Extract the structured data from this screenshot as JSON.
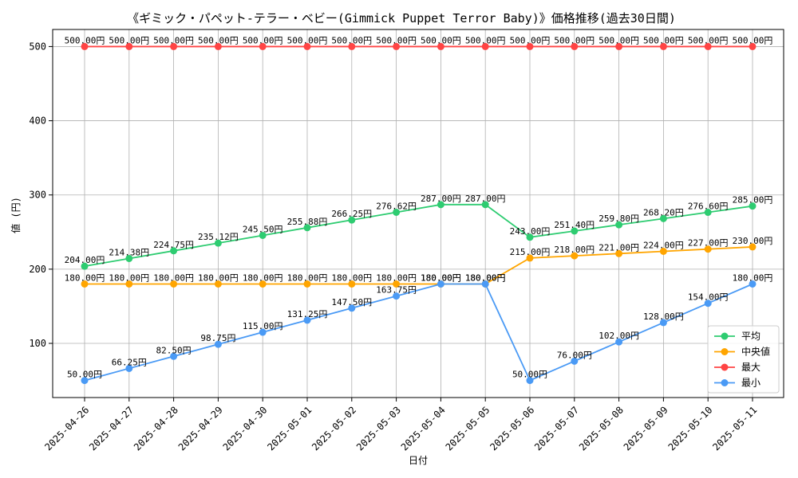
{
  "chart_data": {
    "type": "line",
    "title": "《ギミック・パペット-テラー・ベビー(Gimmick Puppet Terror Baby)》価格推移(過去30日間)",
    "xlabel": "日付",
    "ylabel": "値 (円)",
    "categories": [
      "2025-04-26",
      "2025-04-27",
      "2025-04-28",
      "2025-04-29",
      "2025-04-30",
      "2025-05-01",
      "2025-05-02",
      "2025-05-03",
      "2025-05-04",
      "2025-05-05",
      "2025-05-06",
      "2025-05-07",
      "2025-05-08",
      "2025-05-09",
      "2025-05-10",
      "2025-05-11"
    ],
    "yticks": [
      100,
      200,
      300,
      400,
      500
    ],
    "ylim": [
      27,
      523
    ],
    "grid": true,
    "legend_position": "bottom-right",
    "value_suffix": "円",
    "series": [
      {
        "name": "平均",
        "color": "#2ecc71",
        "values": [
          204.0,
          214.38,
          224.75,
          235.12,
          245.5,
          255.88,
          266.25,
          276.62,
          287.0,
          287.0,
          243.0,
          251.4,
          259.8,
          268.2,
          276.6,
          285.0
        ]
      },
      {
        "name": "中央値",
        "color": "#ffa500",
        "values": [
          180.0,
          180.0,
          180.0,
          180.0,
          180.0,
          180.0,
          180.0,
          180.0,
          180.0,
          180.0,
          215.0,
          218.0,
          221.0,
          224.0,
          227.0,
          230.0
        ]
      },
      {
        "name": "最大",
        "color": "#ff4444",
        "values": [
          500.0,
          500.0,
          500.0,
          500.0,
          500.0,
          500.0,
          500.0,
          500.0,
          500.0,
          500.0,
          500.0,
          500.0,
          500.0,
          500.0,
          500.0,
          500.0
        ]
      },
      {
        "name": "最小",
        "color": "#4a9af5",
        "values": [
          50.0,
          66.25,
          82.5,
          98.75,
          115.0,
          131.25,
          147.5,
          163.75,
          180.0,
          180.0,
          50.0,
          76.0,
          102.0,
          128.0,
          154.0,
          180.0
        ]
      }
    ]
  }
}
